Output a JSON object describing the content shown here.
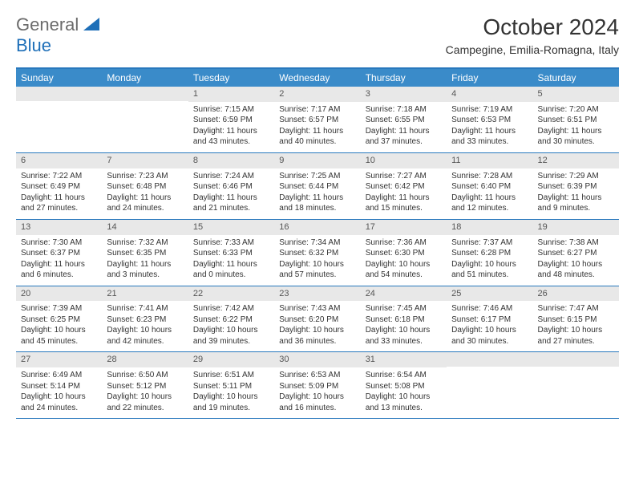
{
  "logo": {
    "line1": "General",
    "line2": "Blue"
  },
  "title": "October 2024",
  "subtitle": "Campegine, Emilia-Romagna, Italy",
  "colors": {
    "accent": "#3a8bc9",
    "accent_border": "#2878bd",
    "daynum_bg": "#e8e8e8",
    "text": "#333333",
    "logo_gray": "#6b6b6b",
    "logo_blue": "#1e6fb8"
  },
  "day_names": [
    "Sunday",
    "Monday",
    "Tuesday",
    "Wednesday",
    "Thursday",
    "Friday",
    "Saturday"
  ],
  "weeks": [
    [
      {
        "n": "",
        "sunrise": "",
        "sunset": "",
        "daylight": ""
      },
      {
        "n": "",
        "sunrise": "",
        "sunset": "",
        "daylight": ""
      },
      {
        "n": "1",
        "sunrise": "Sunrise: 7:15 AM",
        "sunset": "Sunset: 6:59 PM",
        "daylight": "Daylight: 11 hours and 43 minutes."
      },
      {
        "n": "2",
        "sunrise": "Sunrise: 7:17 AM",
        "sunset": "Sunset: 6:57 PM",
        "daylight": "Daylight: 11 hours and 40 minutes."
      },
      {
        "n": "3",
        "sunrise": "Sunrise: 7:18 AM",
        "sunset": "Sunset: 6:55 PM",
        "daylight": "Daylight: 11 hours and 37 minutes."
      },
      {
        "n": "4",
        "sunrise": "Sunrise: 7:19 AM",
        "sunset": "Sunset: 6:53 PM",
        "daylight": "Daylight: 11 hours and 33 minutes."
      },
      {
        "n": "5",
        "sunrise": "Sunrise: 7:20 AM",
        "sunset": "Sunset: 6:51 PM",
        "daylight": "Daylight: 11 hours and 30 minutes."
      }
    ],
    [
      {
        "n": "6",
        "sunrise": "Sunrise: 7:22 AM",
        "sunset": "Sunset: 6:49 PM",
        "daylight": "Daylight: 11 hours and 27 minutes."
      },
      {
        "n": "7",
        "sunrise": "Sunrise: 7:23 AM",
        "sunset": "Sunset: 6:48 PM",
        "daylight": "Daylight: 11 hours and 24 minutes."
      },
      {
        "n": "8",
        "sunrise": "Sunrise: 7:24 AM",
        "sunset": "Sunset: 6:46 PM",
        "daylight": "Daylight: 11 hours and 21 minutes."
      },
      {
        "n": "9",
        "sunrise": "Sunrise: 7:25 AM",
        "sunset": "Sunset: 6:44 PM",
        "daylight": "Daylight: 11 hours and 18 minutes."
      },
      {
        "n": "10",
        "sunrise": "Sunrise: 7:27 AM",
        "sunset": "Sunset: 6:42 PM",
        "daylight": "Daylight: 11 hours and 15 minutes."
      },
      {
        "n": "11",
        "sunrise": "Sunrise: 7:28 AM",
        "sunset": "Sunset: 6:40 PM",
        "daylight": "Daylight: 11 hours and 12 minutes."
      },
      {
        "n": "12",
        "sunrise": "Sunrise: 7:29 AM",
        "sunset": "Sunset: 6:39 PM",
        "daylight": "Daylight: 11 hours and 9 minutes."
      }
    ],
    [
      {
        "n": "13",
        "sunrise": "Sunrise: 7:30 AM",
        "sunset": "Sunset: 6:37 PM",
        "daylight": "Daylight: 11 hours and 6 minutes."
      },
      {
        "n": "14",
        "sunrise": "Sunrise: 7:32 AM",
        "sunset": "Sunset: 6:35 PM",
        "daylight": "Daylight: 11 hours and 3 minutes."
      },
      {
        "n": "15",
        "sunrise": "Sunrise: 7:33 AM",
        "sunset": "Sunset: 6:33 PM",
        "daylight": "Daylight: 11 hours and 0 minutes."
      },
      {
        "n": "16",
        "sunrise": "Sunrise: 7:34 AM",
        "sunset": "Sunset: 6:32 PM",
        "daylight": "Daylight: 10 hours and 57 minutes."
      },
      {
        "n": "17",
        "sunrise": "Sunrise: 7:36 AM",
        "sunset": "Sunset: 6:30 PM",
        "daylight": "Daylight: 10 hours and 54 minutes."
      },
      {
        "n": "18",
        "sunrise": "Sunrise: 7:37 AM",
        "sunset": "Sunset: 6:28 PM",
        "daylight": "Daylight: 10 hours and 51 minutes."
      },
      {
        "n": "19",
        "sunrise": "Sunrise: 7:38 AM",
        "sunset": "Sunset: 6:27 PM",
        "daylight": "Daylight: 10 hours and 48 minutes."
      }
    ],
    [
      {
        "n": "20",
        "sunrise": "Sunrise: 7:39 AM",
        "sunset": "Sunset: 6:25 PM",
        "daylight": "Daylight: 10 hours and 45 minutes."
      },
      {
        "n": "21",
        "sunrise": "Sunrise: 7:41 AM",
        "sunset": "Sunset: 6:23 PM",
        "daylight": "Daylight: 10 hours and 42 minutes."
      },
      {
        "n": "22",
        "sunrise": "Sunrise: 7:42 AM",
        "sunset": "Sunset: 6:22 PM",
        "daylight": "Daylight: 10 hours and 39 minutes."
      },
      {
        "n": "23",
        "sunrise": "Sunrise: 7:43 AM",
        "sunset": "Sunset: 6:20 PM",
        "daylight": "Daylight: 10 hours and 36 minutes."
      },
      {
        "n": "24",
        "sunrise": "Sunrise: 7:45 AM",
        "sunset": "Sunset: 6:18 PM",
        "daylight": "Daylight: 10 hours and 33 minutes."
      },
      {
        "n": "25",
        "sunrise": "Sunrise: 7:46 AM",
        "sunset": "Sunset: 6:17 PM",
        "daylight": "Daylight: 10 hours and 30 minutes."
      },
      {
        "n": "26",
        "sunrise": "Sunrise: 7:47 AM",
        "sunset": "Sunset: 6:15 PM",
        "daylight": "Daylight: 10 hours and 27 minutes."
      }
    ],
    [
      {
        "n": "27",
        "sunrise": "Sunrise: 6:49 AM",
        "sunset": "Sunset: 5:14 PM",
        "daylight": "Daylight: 10 hours and 24 minutes."
      },
      {
        "n": "28",
        "sunrise": "Sunrise: 6:50 AM",
        "sunset": "Sunset: 5:12 PM",
        "daylight": "Daylight: 10 hours and 22 minutes."
      },
      {
        "n": "29",
        "sunrise": "Sunrise: 6:51 AM",
        "sunset": "Sunset: 5:11 PM",
        "daylight": "Daylight: 10 hours and 19 minutes."
      },
      {
        "n": "30",
        "sunrise": "Sunrise: 6:53 AM",
        "sunset": "Sunset: 5:09 PM",
        "daylight": "Daylight: 10 hours and 16 minutes."
      },
      {
        "n": "31",
        "sunrise": "Sunrise: 6:54 AM",
        "sunset": "Sunset: 5:08 PM",
        "daylight": "Daylight: 10 hours and 13 minutes."
      },
      {
        "n": "",
        "sunrise": "",
        "sunset": "",
        "daylight": ""
      },
      {
        "n": "",
        "sunrise": "",
        "sunset": "",
        "daylight": ""
      }
    ]
  ]
}
